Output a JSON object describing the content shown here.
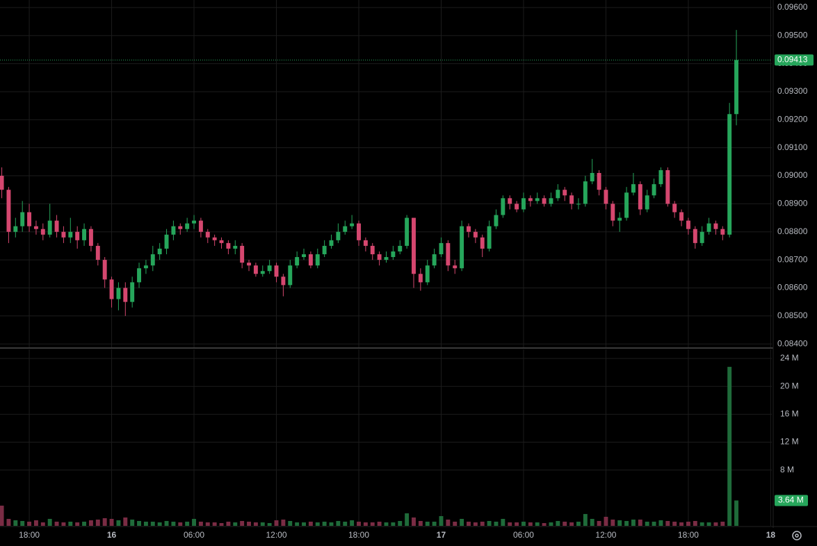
{
  "chart_data": {
    "type": "candlestick",
    "x": [
      16,
      16.5,
      17,
      17.5,
      18,
      18.5,
      19,
      19.5,
      20,
      20.5,
      21,
      21.5,
      22,
      22.5,
      23,
      23.5,
      24,
      24.5,
      25,
      25.5,
      26,
      26.5,
      27,
      27.5,
      28,
      28.5,
      29,
      29.5,
      30,
      30.5,
      31,
      31.5,
      32,
      32.5,
      33,
      33.5,
      34,
      34.5,
      35,
      35.5,
      36,
      36.5,
      37,
      37.5,
      38,
      38.5,
      39,
      39.5,
      40,
      40.5,
      41,
      41.5,
      42,
      42.5,
      43,
      43.5,
      44,
      44.5,
      45,
      45.5,
      46,
      46.5,
      47,
      47.5,
      48,
      48.5,
      49,
      49.5,
      50,
      50.5,
      51,
      51.5,
      52,
      52.5,
      53,
      53.5,
      54,
      54.5,
      55,
      55.5,
      56,
      56.5,
      57,
      57.5,
      58,
      58.5,
      59,
      59.5,
      60,
      60.5,
      61,
      61.5,
      62,
      62.5,
      63,
      63.5,
      64,
      64.5,
      65,
      65.5,
      66,
      66.5,
      67,
      67.5,
      68,
      68.5,
      69,
      69.5
    ],
    "ohlc": [
      [
        0.09,
        0.0903,
        0.0892,
        0.0895
      ],
      [
        0.0895,
        0.0896,
        0.0876,
        0.088
      ],
      [
        0.088,
        0.0885,
        0.0878,
        0.0882
      ],
      [
        0.0882,
        0.0891,
        0.088,
        0.0887
      ],
      [
        0.0887,
        0.089,
        0.088,
        0.0882
      ],
      [
        0.0882,
        0.0884,
        0.0879,
        0.0881
      ],
      [
        0.0881,
        0.0883,
        0.0877,
        0.0879
      ],
      [
        0.0879,
        0.089,
        0.0878,
        0.0884
      ],
      [
        0.0884,
        0.0886,
        0.0878,
        0.088
      ],
      [
        0.088,
        0.0882,
        0.0876,
        0.0878
      ],
      [
        0.0878,
        0.0885,
        0.0876,
        0.088
      ],
      [
        0.088,
        0.0882,
        0.0874,
        0.0877
      ],
      [
        0.0877,
        0.0883,
        0.0875,
        0.0881
      ],
      [
        0.0881,
        0.0882,
        0.0873,
        0.0875
      ],
      [
        0.0875,
        0.0876,
        0.0868,
        0.087
      ],
      [
        0.087,
        0.0871,
        0.086,
        0.0863
      ],
      [
        0.0863,
        0.0864,
        0.0853,
        0.0856
      ],
      [
        0.0856,
        0.0862,
        0.0852,
        0.086
      ],
      [
        0.086,
        0.0862,
        0.085,
        0.0855
      ],
      [
        0.0855,
        0.0864,
        0.0853,
        0.0862
      ],
      [
        0.0862,
        0.0869,
        0.086,
        0.0867
      ],
      [
        0.0867,
        0.087,
        0.0865,
        0.0868
      ],
      [
        0.0868,
        0.0875,
        0.0866,
        0.0872
      ],
      [
        0.0872,
        0.0876,
        0.087,
        0.0874
      ],
      [
        0.0874,
        0.0881,
        0.0872,
        0.0879
      ],
      [
        0.0879,
        0.0884,
        0.0877,
        0.0882
      ],
      [
        0.0882,
        0.0883,
        0.0879,
        0.0881
      ],
      [
        0.0881,
        0.0885,
        0.088,
        0.0883
      ],
      [
        0.0883,
        0.0886,
        0.0881,
        0.0884
      ],
      [
        0.0884,
        0.0885,
        0.0878,
        0.088
      ],
      [
        0.088,
        0.0881,
        0.0876,
        0.0878
      ],
      [
        0.0878,
        0.0879,
        0.0875,
        0.0877
      ],
      [
        0.0877,
        0.0878,
        0.0874,
        0.0876
      ],
      [
        0.0876,
        0.0877,
        0.0872,
        0.0874
      ],
      [
        0.0874,
        0.0877,
        0.0872,
        0.0875
      ],
      [
        0.0875,
        0.0876,
        0.0867,
        0.0869
      ],
      [
        0.0869,
        0.087,
        0.0866,
        0.0868
      ],
      [
        0.0868,
        0.0869,
        0.0864,
        0.0865
      ],
      [
        0.0865,
        0.0868,
        0.0864,
        0.0866
      ],
      [
        0.0866,
        0.087,
        0.0865,
        0.0868
      ],
      [
        0.0868,
        0.0869,
        0.0862,
        0.0864
      ],
      [
        0.0864,
        0.0865,
        0.0857,
        0.0861
      ],
      [
        0.0861,
        0.087,
        0.086,
        0.0868
      ],
      [
        0.0868,
        0.0873,
        0.0867,
        0.0871
      ],
      [
        0.0871,
        0.0874,
        0.087,
        0.0872
      ],
      [
        0.0872,
        0.0873,
        0.0867,
        0.0868
      ],
      [
        0.0868,
        0.0874,
        0.0867,
        0.0872
      ],
      [
        0.0872,
        0.0877,
        0.0871,
        0.0875
      ],
      [
        0.0875,
        0.0879,
        0.0874,
        0.0877
      ],
      [
        0.0877,
        0.0883,
        0.0876,
        0.088
      ],
      [
        0.088,
        0.0884,
        0.0879,
        0.0882
      ],
      [
        0.0882,
        0.0886,
        0.0881,
        0.0883
      ],
      [
        0.0883,
        0.0884,
        0.0875,
        0.0877
      ],
      [
        0.0877,
        0.0878,
        0.0873,
        0.0875
      ],
      [
        0.0875,
        0.0876,
        0.087,
        0.0872
      ],
      [
        0.0872,
        0.0873,
        0.0868,
        0.087
      ],
      [
        0.087,
        0.0873,
        0.0869,
        0.0871
      ],
      [
        0.0871,
        0.0875,
        0.087,
        0.0873
      ],
      [
        0.0873,
        0.0877,
        0.0872,
        0.0875
      ],
      [
        0.0875,
        0.0886,
        0.0874,
        0.0885
      ],
      [
        0.0885,
        0.0885,
        0.086,
        0.0865
      ],
      [
        0.0865,
        0.0867,
        0.0859,
        0.0862
      ],
      [
        0.0862,
        0.087,
        0.0861,
        0.0868
      ],
      [
        0.0868,
        0.0874,
        0.0867,
        0.0872
      ],
      [
        0.0872,
        0.0878,
        0.0871,
        0.0876
      ],
      [
        0.0876,
        0.0877,
        0.0866,
        0.0868
      ],
      [
        0.0868,
        0.087,
        0.0865,
        0.0867
      ],
      [
        0.0867,
        0.0884,
        0.0866,
        0.0882
      ],
      [
        0.0882,
        0.0883,
        0.0878,
        0.088
      ],
      [
        0.088,
        0.0881,
        0.0876,
        0.0878
      ],
      [
        0.0878,
        0.0879,
        0.0871,
        0.0874
      ],
      [
        0.0874,
        0.0884,
        0.0873,
        0.0882
      ],
      [
        0.0882,
        0.0888,
        0.0881,
        0.0886
      ],
      [
        0.0886,
        0.0893,
        0.0885,
        0.0892
      ],
      [
        0.0892,
        0.0893,
        0.0888,
        0.089
      ],
      [
        0.089,
        0.0891,
        0.0887,
        0.0888
      ],
      [
        0.0888,
        0.0894,
        0.0887,
        0.0892
      ],
      [
        0.0892,
        0.0893,
        0.0889,
        0.0891
      ],
      [
        0.0891,
        0.0894,
        0.089,
        0.0892
      ],
      [
        0.0892,
        0.0893,
        0.0889,
        0.089
      ],
      [
        0.089,
        0.0894,
        0.0889,
        0.0892
      ],
      [
        0.0892,
        0.0897,
        0.0891,
        0.0895
      ],
      [
        0.0895,
        0.0896,
        0.0891,
        0.0893
      ],
      [
        0.0893,
        0.0894,
        0.0888,
        0.089
      ],
      [
        0.089,
        0.0892,
        0.0888,
        0.089
      ],
      [
        0.089,
        0.09,
        0.0889,
        0.0898
      ],
      [
        0.0898,
        0.0906,
        0.0897,
        0.0901
      ],
      [
        0.0901,
        0.0902,
        0.0893,
        0.0895
      ],
      [
        0.0895,
        0.0896,
        0.0888,
        0.089
      ],
      [
        0.089,
        0.0891,
        0.0882,
        0.0884
      ],
      [
        0.0884,
        0.0887,
        0.088,
        0.0885
      ],
      [
        0.0885,
        0.0896,
        0.0884,
        0.0894
      ],
      [
        0.0894,
        0.0901,
        0.0893,
        0.0897
      ],
      [
        0.0897,
        0.0898,
        0.0886,
        0.0888
      ],
      [
        0.0888,
        0.0895,
        0.0887,
        0.0893
      ],
      [
        0.0893,
        0.0899,
        0.0892,
        0.0897
      ],
      [
        0.0897,
        0.0903,
        0.0896,
        0.0902
      ],
      [
        0.0902,
        0.0903,
        0.0889,
        0.089
      ],
      [
        0.089,
        0.0891,
        0.0885,
        0.0887
      ],
      [
        0.0887,
        0.0888,
        0.0882,
        0.0884
      ],
      [
        0.0884,
        0.0885,
        0.0879,
        0.0881
      ],
      [
        0.0881,
        0.0882,
        0.0874,
        0.0876
      ],
      [
        0.0876,
        0.0882,
        0.0875,
        0.088
      ],
      [
        0.088,
        0.0885,
        0.0879,
        0.0883
      ],
      [
        0.0883,
        0.0884,
        0.0879,
        0.0881
      ],
      [
        0.0881,
        0.0882,
        0.0877,
        0.0879
      ],
      [
        0.0879,
        0.0926,
        0.0878,
        0.0922
      ],
      [
        0.0922,
        0.0952,
        0.0918,
        0.09413
      ]
    ],
    "up_color": "#26a65b",
    "down_color": "#d5476f",
    "xlim": [
      15.87,
      72.08
    ],
    "xticks": [
      {
        "value": 18,
        "label": "18:00"
      },
      {
        "value": 24,
        "label": "16"
      },
      {
        "value": 30,
        "label": "06:00"
      },
      {
        "value": 36,
        "label": "12:00"
      },
      {
        "value": 42,
        "label": "18:00"
      },
      {
        "value": 48,
        "label": "17"
      },
      {
        "value": 54,
        "label": "06:00"
      },
      {
        "value": 60,
        "label": "12:00"
      },
      {
        "value": 66,
        "label": "18:00"
      },
      {
        "value": 72,
        "label": "18"
      }
    ],
    "ylim": [
      0.08388,
      0.09627
    ],
    "yticks": [
      {
        "value": 0.084,
        "label": "0.08400"
      },
      {
        "value": 0.085,
        "label": "0.08500"
      },
      {
        "value": 0.086,
        "label": "0.08600"
      },
      {
        "value": 0.087,
        "label": "0.08700"
      },
      {
        "value": 0.088,
        "label": "0.08800"
      },
      {
        "value": 0.089,
        "label": "0.08900"
      },
      {
        "value": 0.09,
        "label": "0.09000"
      },
      {
        "value": 0.091,
        "label": "0.09100"
      },
      {
        "value": 0.092,
        "label": "0.09200"
      },
      {
        "value": 0.093,
        "label": "0.09300"
      },
      {
        "value": 0.094,
        "label": "0.09400"
      },
      {
        "value": 0.095,
        "label": "0.09500"
      },
      {
        "value": 0.096,
        "label": "0.09600"
      }
    ],
    "grid": true,
    "volume": {
      "values": [
        2.9,
        1.0,
        0.8,
        0.7,
        0.6,
        0.8,
        0.5,
        1.0,
        0.6,
        0.5,
        0.6,
        0.5,
        0.6,
        0.8,
        0.9,
        1.1,
        1.0,
        0.8,
        1.2,
        0.9,
        0.7,
        0.6,
        0.6,
        0.5,
        0.7,
        0.6,
        0.5,
        0.6,
        1.0,
        0.6,
        0.5,
        0.5,
        0.4,
        0.6,
        0.5,
        0.7,
        0.6,
        0.5,
        0.5,
        0.4,
        0.8,
        0.9,
        0.7,
        0.5,
        0.5,
        0.6,
        0.5,
        0.6,
        0.5,
        0.7,
        0.6,
        0.8,
        0.6,
        0.5,
        0.5,
        0.6,
        0.5,
        0.5,
        0.7,
        1.8,
        1.2,
        0.7,
        0.6,
        0.6,
        1.4,
        0.9,
        0.6,
        1.0,
        0.6,
        0.5,
        0.6,
        0.7,
        0.6,
        1.0,
        0.5,
        0.5,
        0.6,
        0.5,
        0.5,
        0.4,
        0.5,
        0.7,
        0.6,
        0.5,
        0.6,
        1.7,
        1.0,
        0.7,
        1.3,
        0.9,
        0.8,
        0.7,
        0.9,
        0.9,
        0.6,
        0.6,
        0.8,
        0.7,
        0.6,
        0.5,
        0.6,
        0.7,
        0.5,
        0.5,
        0.5,
        0.6,
        22.8,
        3.64
      ],
      "last_label": "3.64 M",
      "up_color": "#1f6b3a",
      "down_color": "#7a2c44",
      "ylim": [
        0,
        25.3
      ],
      "yticks": [
        {
          "value": 8,
          "label": "8 M"
        },
        {
          "value": 12,
          "label": "12 M"
        },
        {
          "value": 16,
          "label": "16 M"
        },
        {
          "value": 20,
          "label": "20 M"
        },
        {
          "value": 24,
          "label": "24 M"
        }
      ]
    }
  }
}
